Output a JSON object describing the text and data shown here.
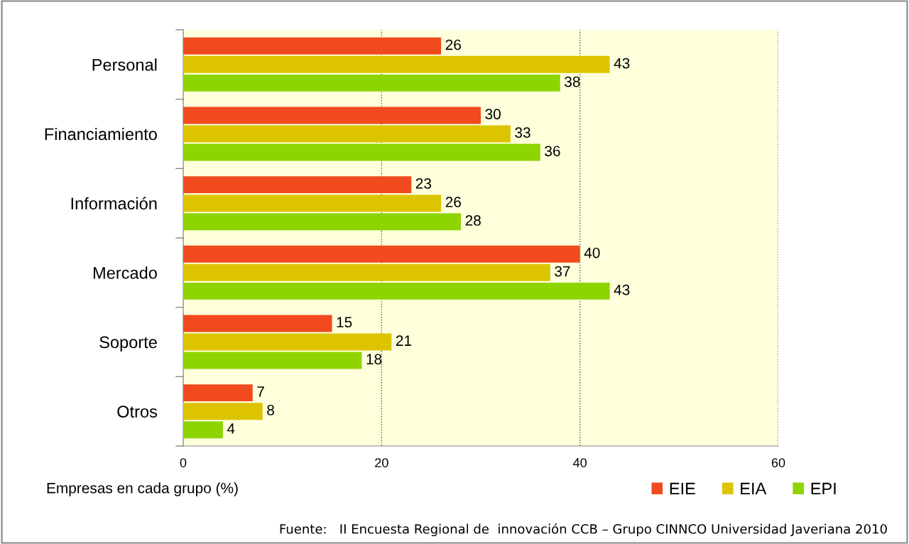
{
  "chart_data": {
    "type": "bar",
    "orientation": "horizontal",
    "categories": [
      "Personal",
      "Financiamiento",
      "Información",
      "Mercado",
      "Soporte",
      "Otros"
    ],
    "series": [
      {
        "name": "EIE",
        "color": "#f04a1e",
        "values": [
          26,
          30,
          23,
          40,
          15,
          7
        ]
      },
      {
        "name": "EIA",
        "color": "#dcc400",
        "values": [
          43,
          33,
          26,
          37,
          21,
          8
        ]
      },
      {
        "name": "EPI",
        "color": "#8ed400",
        "values": [
          38,
          36,
          28,
          43,
          18,
          4
        ]
      }
    ],
    "xlabel": "Empresas en cada grupo (%)",
    "xlim": [
      0,
      60
    ],
    "xticks": [
      0,
      20,
      40,
      60
    ],
    "grid": "x",
    "legend": "bottom right",
    "data_labels": true,
    "annotations": [
      "Fuente:   II Encuesta Regional de  innovación CCB – Grupo CINNCO Universidad Javeriana 2010"
    ]
  }
}
